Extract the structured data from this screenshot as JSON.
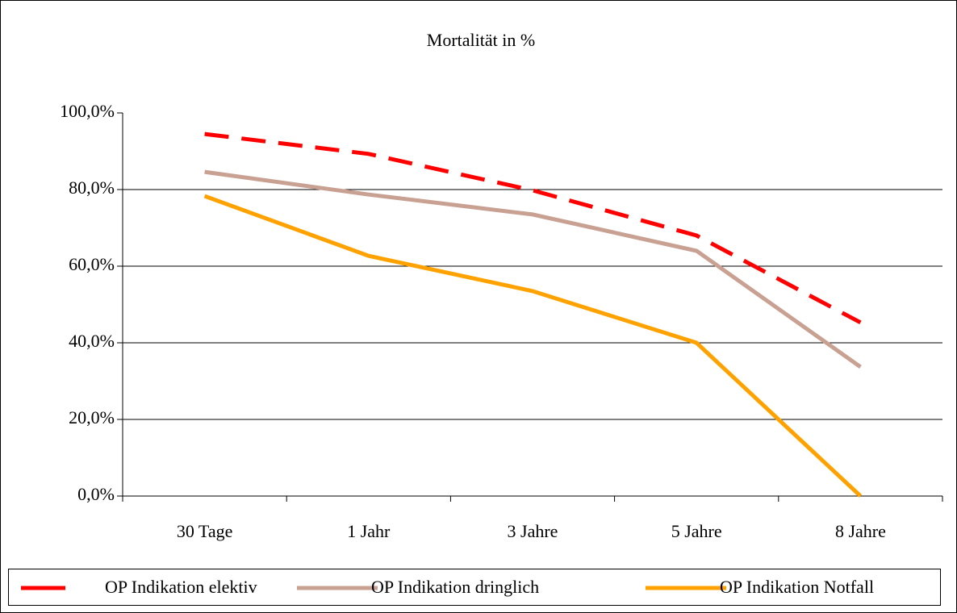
{
  "chart_data": {
    "type": "line",
    "title": "Mortalität in %",
    "categories": [
      "30 Tage",
      "1 Jahr",
      "3 Jahre",
      "5 Jahre",
      "8 Jahre"
    ],
    "series": [
      {
        "name": "OP Indikation elektiv",
        "color": "#ff0000",
        "values": [
          94.5,
          89.3,
          79.8,
          68.0,
          45.3
        ]
      },
      {
        "name": "OP Indikation dringlich",
        "color": "#c9a193",
        "values": [
          84.6,
          78.7,
          73.5,
          64.0,
          33.7
        ]
      },
      {
        "name": "OP Indikation Notfall",
        "color": "#ffa200",
        "values": [
          78.3,
          62.7,
          53.5,
          40.0,
          0
        ]
      }
    ],
    "ylim": [
      0,
      100
    ],
    "yticks": [
      {
        "value": 0,
        "label": "0,0%"
      },
      {
        "value": 20,
        "label": "20,0%"
      },
      {
        "value": 40,
        "label": "40,0%"
      },
      {
        "value": 60,
        "label": "60,0%"
      },
      {
        "value": 80,
        "label": "80,0%"
      },
      {
        "value": 100,
        "label": "100,0%"
      }
    ],
    "grid": true,
    "legend": "bottom"
  }
}
